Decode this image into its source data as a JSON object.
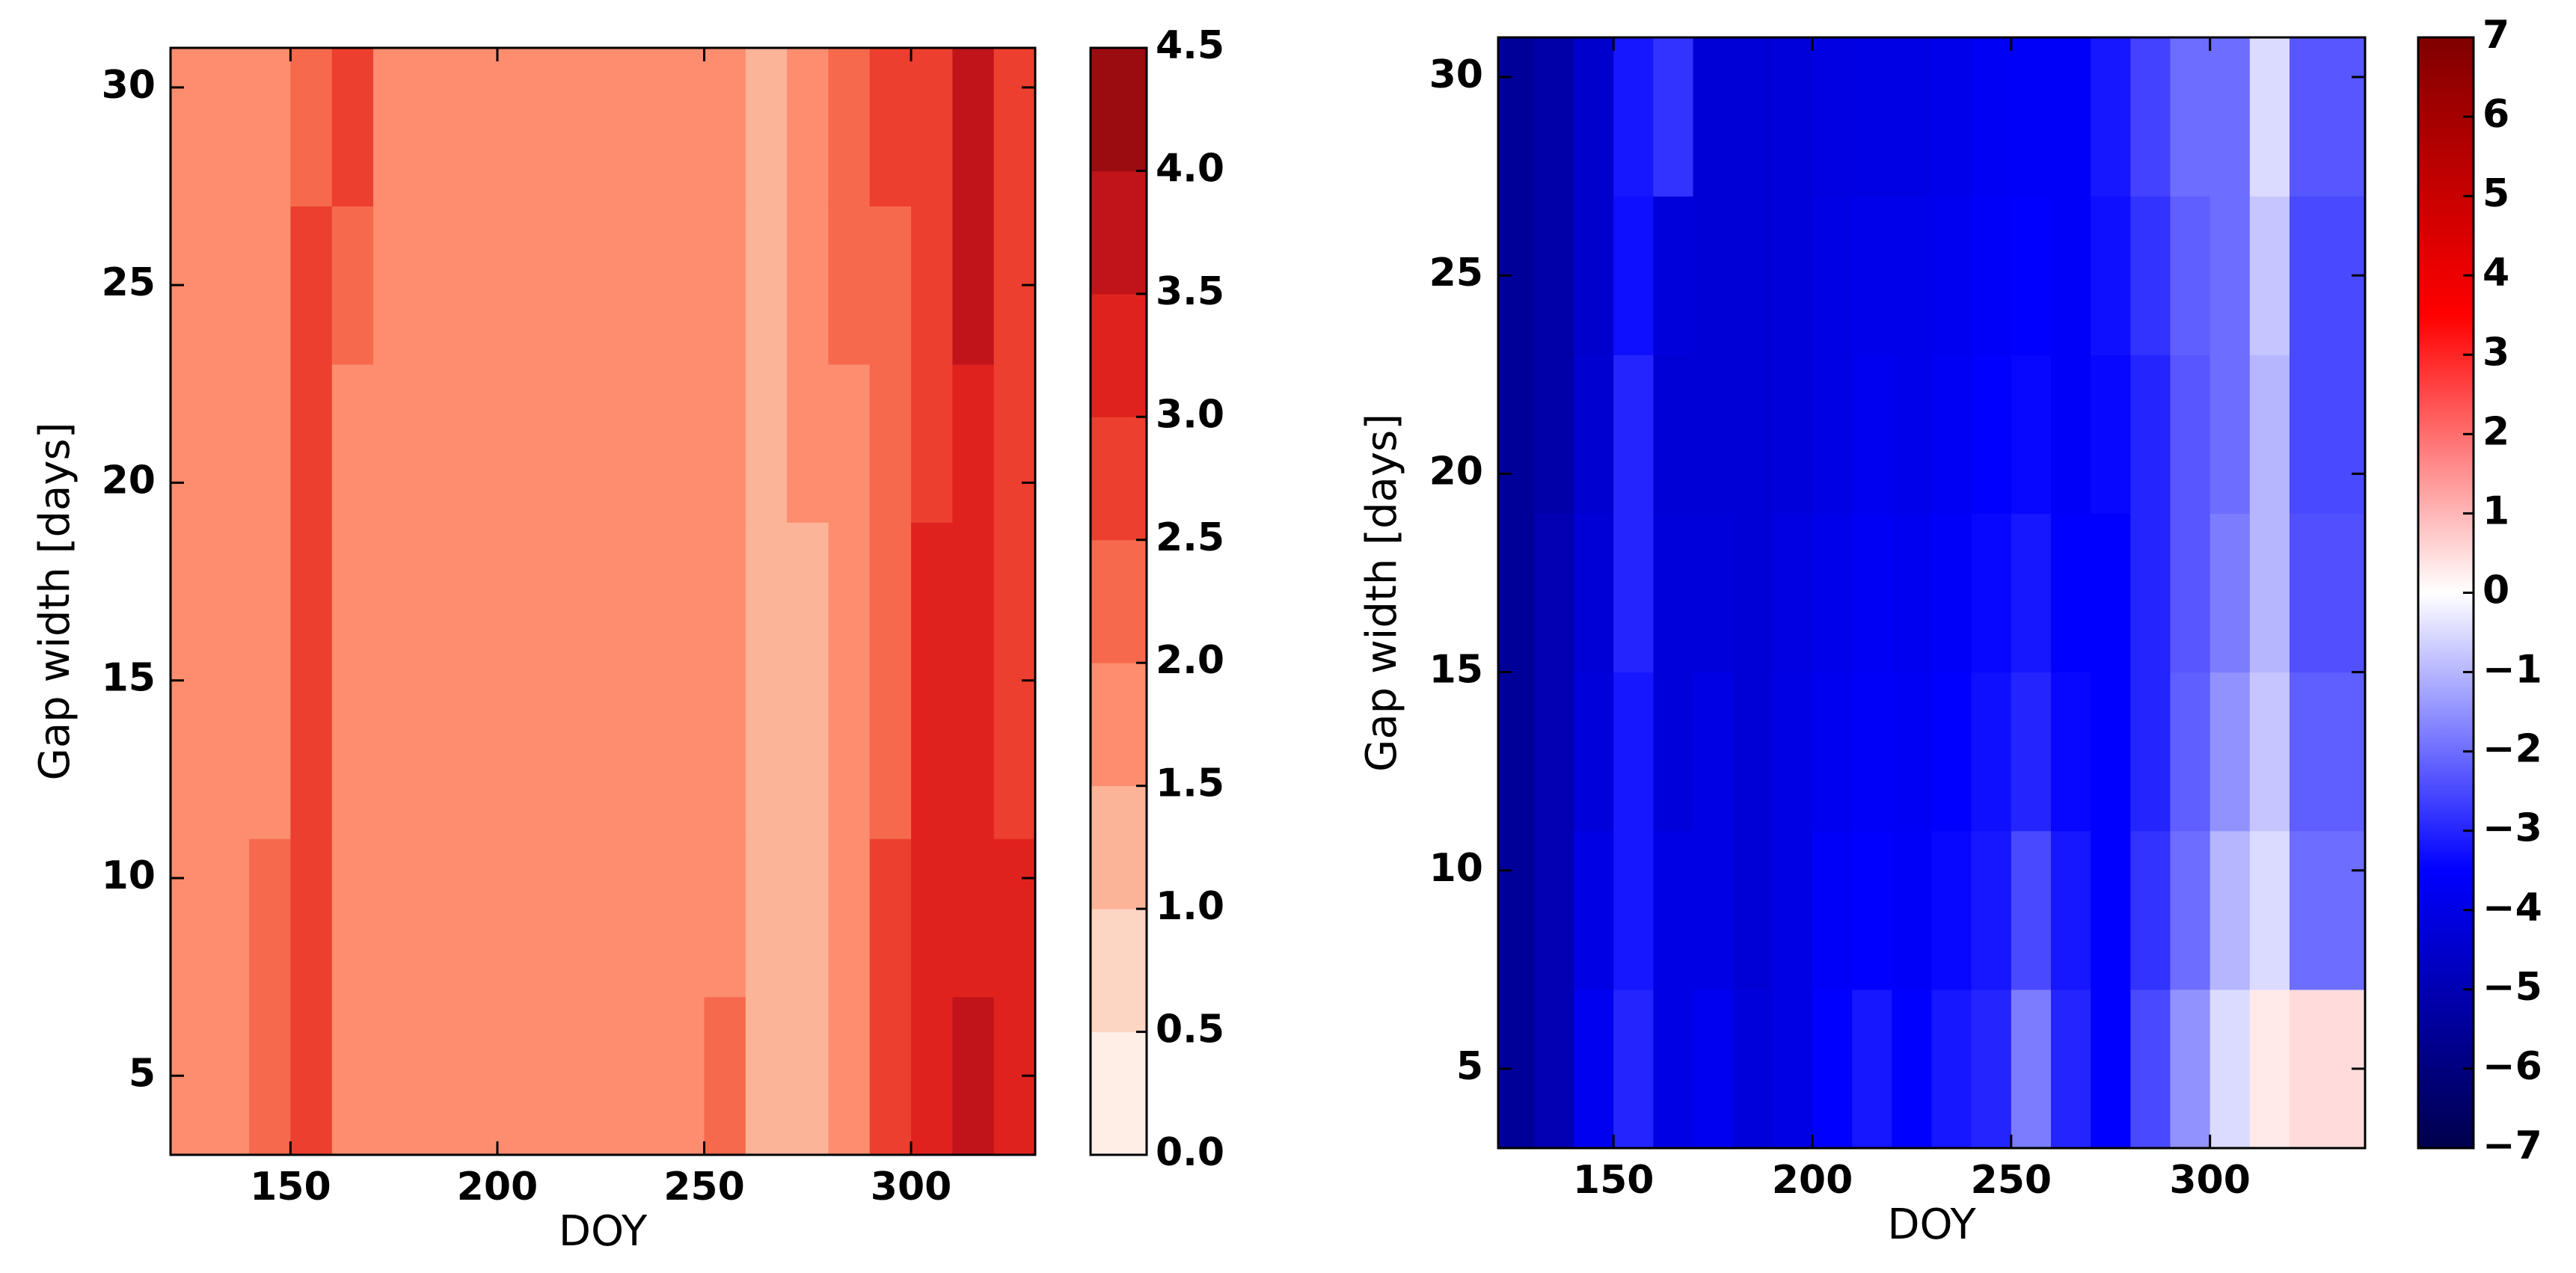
{
  "chart_data": [
    {
      "type": "contour",
      "xlabel": "DOY",
      "ylabel": "Gap width [days]",
      "xlim": [
        121,
        330
      ],
      "ylim": [
        3,
        31
      ],
      "xticks": [
        150,
        200,
        250,
        300
      ],
      "yticks": [
        5,
        10,
        15,
        20,
        25,
        30
      ],
      "x": [
        125,
        135,
        145,
        155,
        165,
        175,
        185,
        195,
        205,
        215,
        225,
        235,
        245,
        255,
        265,
        275,
        285,
        295,
        305,
        315,
        325
      ],
      "y": [
        5,
        9,
        13,
        17,
        21,
        25,
        29
      ],
      "z": [
        [
          1.7,
          1.8,
          2.3,
          2.8,
          1.8,
          1.6,
          1.7,
          1.6,
          1.7,
          1.6,
          1.7,
          1.6,
          1.7,
          2.2,
          1.2,
          1.4,
          1.8,
          2.8,
          3.2,
          3.8,
          3.3
        ],
        [
          1.7,
          1.8,
          2.2,
          2.8,
          1.7,
          1.6,
          1.7,
          1.7,
          1.7,
          1.7,
          1.7,
          1.6,
          1.7,
          1.9,
          1.4,
          1.4,
          1.8,
          2.6,
          3.1,
          3.4,
          3.0
        ],
        [
          1.7,
          1.7,
          1.8,
          2.7,
          1.6,
          1.7,
          1.6,
          1.7,
          1.7,
          1.7,
          1.7,
          1.6,
          1.7,
          1.7,
          1.3,
          1.4,
          1.8,
          2.3,
          3.1,
          3.3,
          2.7
        ],
        [
          1.7,
          1.7,
          1.8,
          2.6,
          1.7,
          1.7,
          1.7,
          1.7,
          1.7,
          1.7,
          1.7,
          1.7,
          1.7,
          1.7,
          1.3,
          1.4,
          1.9,
          2.2,
          3.0,
          3.2,
          2.6
        ],
        [
          1.7,
          1.7,
          1.8,
          2.7,
          1.7,
          1.7,
          1.7,
          1.7,
          1.7,
          1.7,
          1.7,
          1.7,
          1.7,
          1.7,
          1.3,
          1.6,
          1.9,
          2.2,
          2.8,
          3.3,
          2.6
        ],
        [
          1.7,
          1.7,
          1.8,
          2.6,
          2.1,
          1.7,
          1.7,
          1.7,
          1.7,
          1.7,
          1.7,
          1.7,
          1.7,
          1.7,
          1.4,
          1.7,
          2.1,
          2.2,
          2.8,
          3.7,
          2.7
        ],
        [
          1.7,
          1.7,
          1.8,
          2.2,
          2.6,
          1.7,
          1.7,
          1.7,
          1.7,
          1.7,
          1.7,
          1.7,
          1.7,
          1.7,
          1.4,
          1.8,
          2.2,
          2.6,
          2.9,
          3.8,
          2.8
        ]
      ],
      "clim": [
        0,
        4.5
      ],
      "colors": [
        "#feeee6",
        "#fdd5c3",
        "#fcb499",
        "#fc8d6e",
        "#f6694d",
        "#ec3f2f",
        "#e0221f",
        "#c0141a",
        "#9b0c10"
      ],
      "cticks": [
        {
          "value": 0,
          "label": "0.0"
        },
        0.5,
        {
          "value": 1,
          "label": "1.0"
        },
        1.5,
        {
          "value": 2,
          "label": "2.0"
        },
        2.5,
        {
          "value": 3,
          "label": "3.0"
        },
        3.5,
        {
          "value": 4,
          "label": "4.0"
        },
        4.5
      ]
    },
    {
      "type": "heatmap",
      "xlabel": "DOY",
      "ylabel": "Gap width [days]",
      "xlim": [
        121,
        339
      ],
      "ylim": [
        3,
        31
      ],
      "xticks": [
        150,
        200,
        250,
        300
      ],
      "yticks": [
        5,
        10,
        15,
        20,
        25,
        30
      ],
      "x": [
        125,
        135,
        145,
        155,
        165,
        175,
        185,
        195,
        205,
        215,
        225,
        235,
        245,
        255,
        265,
        275,
        285,
        295,
        305,
        315,
        325
      ],
      "y": [
        5,
        9,
        13,
        17,
        21,
        25,
        29
      ],
      "z": [
        [
          -5.5,
          -5,
          -3.8,
          -3,
          -4,
          -3.8,
          -4.2,
          -4,
          -3.5,
          -3.2,
          -3.5,
          -3.2,
          -3,
          -1.8,
          -3,
          -3.5,
          -2.5,
          -1.5,
          -0.5,
          0.3,
          0.5
        ],
        [
          -5.5,
          -5,
          -4,
          -3.2,
          -4,
          -4,
          -4.3,
          -4,
          -3.6,
          -3.5,
          -3.6,
          -3.4,
          -3.2,
          -2.5,
          -3.2,
          -3.5,
          -2.8,
          -2,
          -1,
          -0.5,
          -2
        ],
        [
          -5.5,
          -5,
          -4.2,
          -3.2,
          -4.2,
          -4,
          -4.3,
          -4,
          -3.8,
          -3.6,
          -3.7,
          -3.5,
          -3.3,
          -3,
          -3.4,
          -3.5,
          -3,
          -2.2,
          -1.5,
          -0.8,
          -2.2
        ],
        [
          -5.5,
          -5,
          -4.3,
          -3,
          -4.2,
          -4.2,
          -4.3,
          -4.1,
          -3.9,
          -3.7,
          -3.8,
          -3.6,
          -3.4,
          -3.2,
          -3.5,
          -3.5,
          -3,
          -2.3,
          -1.8,
          -1,
          -2.4
        ],
        [
          -5.5,
          -5.2,
          -4.4,
          -3,
          -4.3,
          -4.3,
          -4.3,
          -4.2,
          -4,
          -3.8,
          -3.9,
          -3.7,
          -3.5,
          -3.4,
          -3.6,
          -3.4,
          -3,
          -2.3,
          -2,
          -1,
          -2.5
        ],
        [
          -5.5,
          -5.2,
          -4.5,
          -3.3,
          -4.2,
          -4.3,
          -4.3,
          -4.2,
          -4,
          -3.9,
          -3.9,
          -3.8,
          -3.6,
          -3.5,
          -3.6,
          -3.3,
          -2.8,
          -2.2,
          -2,
          -0.8,
          -2.5
        ],
        [
          -5.5,
          -5.2,
          -4.5,
          -3.2,
          -2.8,
          -4.3,
          -4.3,
          -4.2,
          -4.1,
          -4,
          -4,
          -3.9,
          -3.7,
          -3.6,
          -3.6,
          -3.2,
          -2.6,
          -2,
          -2,
          -0.5,
          -2.3
        ]
      ],
      "clim": [
        -7,
        7
      ],
      "cmap": [
        "#00004c",
        "#0000ff",
        "#ffffff",
        "#ff0000",
        "#800000"
      ],
      "cticks": [
        {
          "value": -7,
          "label": "−7"
        },
        {
          "value": -6,
          "label": "−6"
        },
        {
          "value": -5,
          "label": "−5"
        },
        {
          "value": -4,
          "label": "−4"
        },
        {
          "value": -3,
          "label": "−3"
        },
        {
          "value": -2,
          "label": "−2"
        },
        {
          "value": -1,
          "label": "−1"
        },
        0,
        1,
        2,
        3,
        4,
        5,
        6,
        7
      ]
    }
  ]
}
